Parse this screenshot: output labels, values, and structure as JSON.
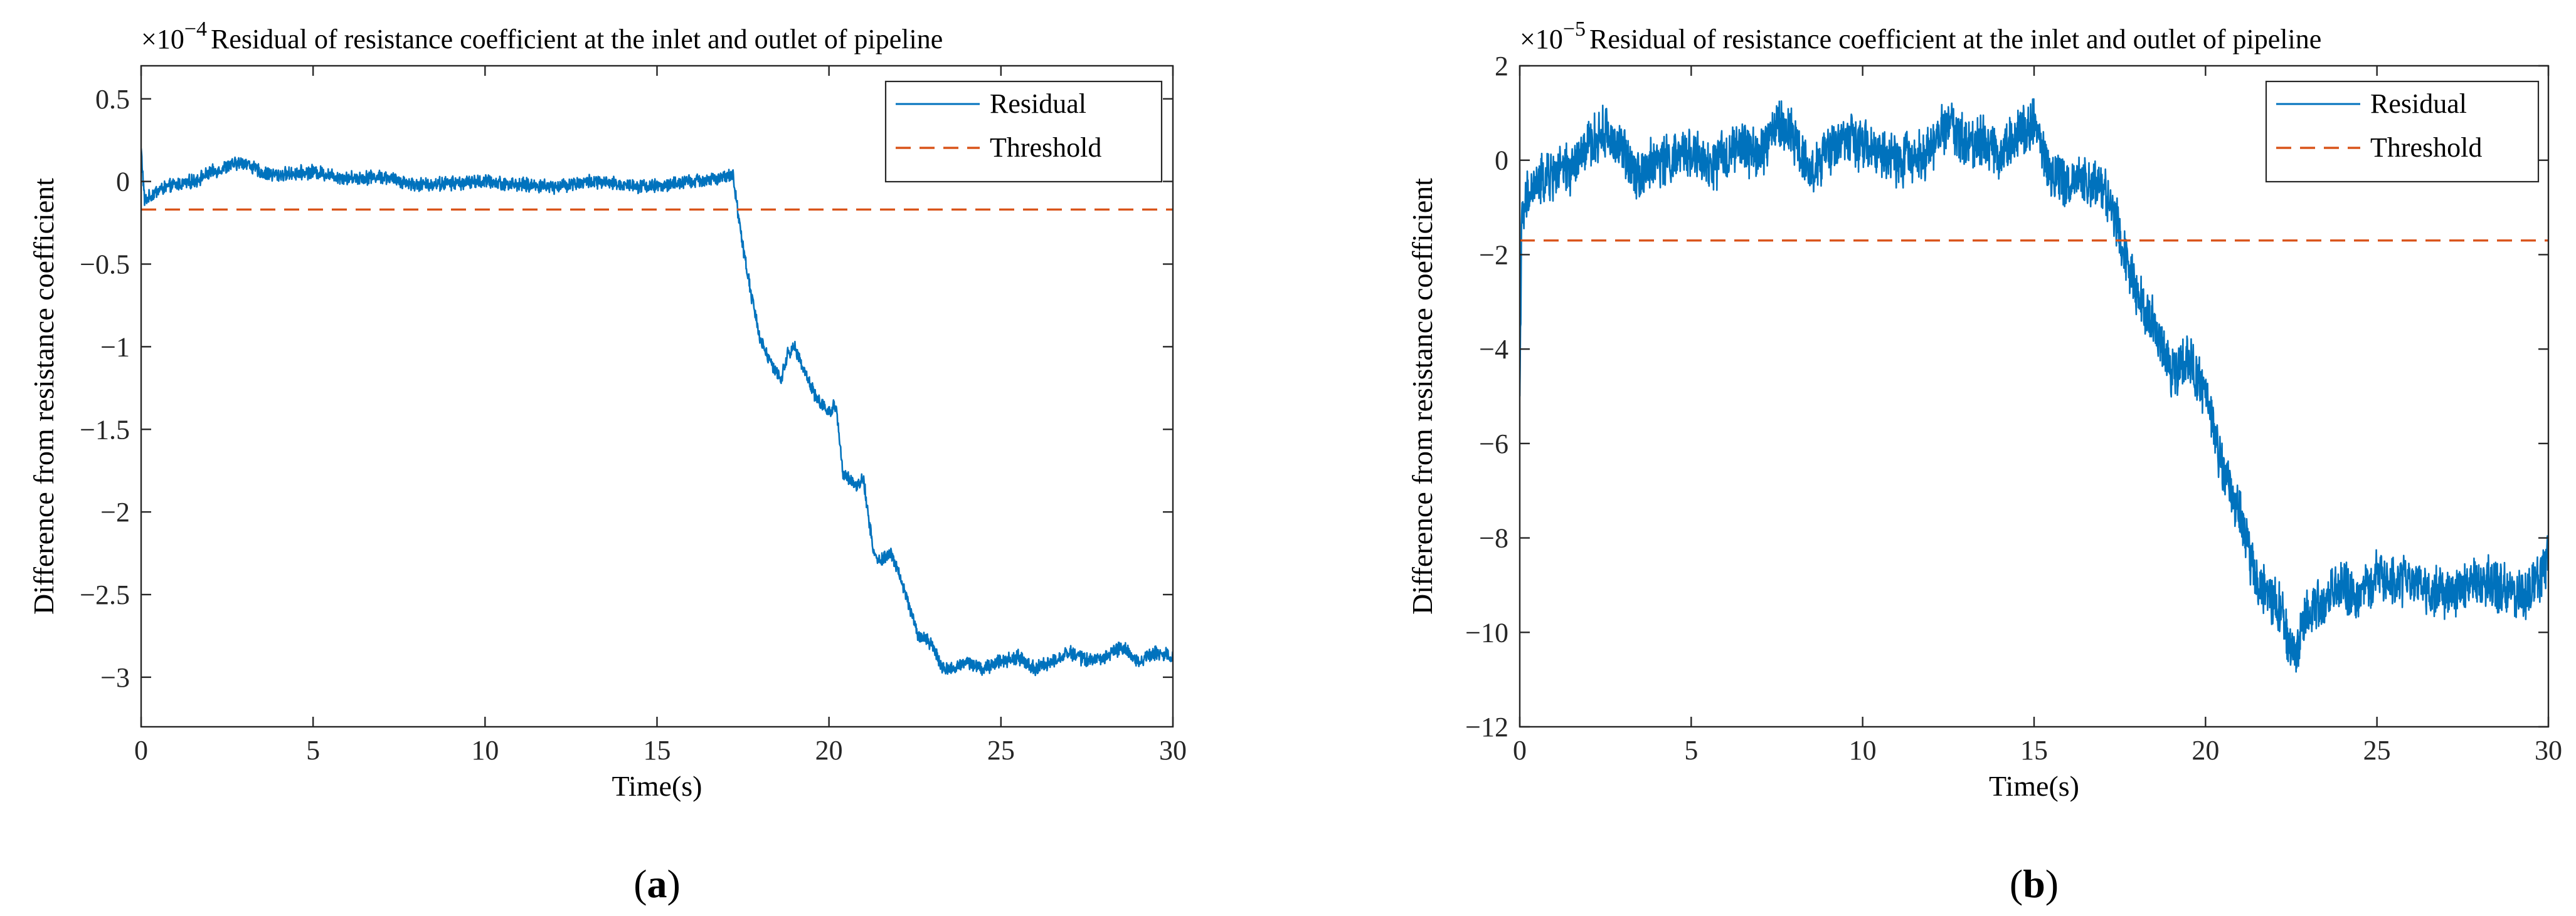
{
  "chart_data": [
    {
      "panel_label": "(a)",
      "panel_letter": "a",
      "type": "line",
      "title": "Residual of resistance coefficient at the inlet and outlet of pipeline",
      "exponent_label": "×10",
      "exponent": "−4",
      "xlabel": "Time(s)",
      "ylabel": "Difference from resistance coefficient",
      "xlim": [
        0,
        30
      ],
      "ylim": [
        -3.3,
        0.7
      ],
      "xticks": [
        0,
        5,
        10,
        15,
        20,
        25,
        30
      ],
      "xtick_labels": [
        "0",
        "5",
        "10",
        "15",
        "20",
        "25",
        "30"
      ],
      "yticks": [
        0.5,
        0,
        -0.5,
        -1,
        -1.5,
        -2,
        -2.5,
        -3
      ],
      "ytick_labels": [
        "0.5",
        "0",
        "−0.5",
        "−1",
        "−1.5",
        "−2",
        "−2.5",
        "−3"
      ],
      "series": [
        {
          "name": "Residual",
          "color": "#0072BD",
          "style": "solid",
          "x": [
            0,
            0.1,
            0.5,
            1,
            1.5,
            2,
            2.5,
            3,
            3.5,
            4,
            5,
            6,
            7,
            8,
            9,
            10,
            11,
            12,
            13,
            14,
            15,
            16,
            17,
            17.2,
            17.5,
            17.8,
            18,
            18.3,
            18.6,
            18.8,
            19,
            19.3,
            19.6,
            19.8,
            20,
            20.2,
            20.4,
            20.6,
            20.8,
            21,
            21.3,
            21.5,
            21.8,
            22,
            22.3,
            22.6,
            23,
            23.3,
            23.6,
            24,
            24.5,
            25,
            25.5,
            26,
            26.5,
            27,
            27.5,
            28,
            28.5,
            29,
            29.5,
            30
          ],
          "y": [
            0.2,
            -0.12,
            -0.05,
            -0.02,
            0.0,
            0.05,
            0.09,
            0.12,
            0.05,
            0.04,
            0.06,
            0.02,
            0.03,
            -0.02,
            -0.01,
            0.0,
            -0.02,
            -0.03,
            0.0,
            -0.02,
            -0.03,
            0.0,
            0.02,
            0.05,
            -0.4,
            -0.75,
            -0.95,
            -1.1,
            -1.2,
            -1.05,
            -1.0,
            -1.15,
            -1.3,
            -1.35,
            -1.4,
            -1.35,
            -1.75,
            -1.8,
            -1.85,
            -1.8,
            -2.25,
            -2.3,
            -2.25,
            -2.35,
            -2.55,
            -2.75,
            -2.8,
            -2.95,
            -2.95,
            -2.9,
            -2.95,
            -2.9,
            -2.88,
            -2.95,
            -2.9,
            -2.85,
            -2.9,
            -2.88,
            -2.82,
            -2.9,
            -2.85,
            -2.87
          ],
          "noise_amplitude": 0.035
        },
        {
          "name": "Threshold",
          "color": "#D95319",
          "style": "dashed",
          "x": [
            0,
            30
          ],
          "y": [
            -0.17,
            -0.17
          ]
        }
      ]
    },
    {
      "panel_label": "(b)",
      "panel_letter": "b",
      "type": "line",
      "title": "Residual of resistance coefficient at the inlet and outlet of pipeline",
      "exponent_label": "×10",
      "exponent": "−5",
      "xlabel": "Time(s)",
      "ylabel": "Difference from resistance coefficient",
      "xlim": [
        0,
        30
      ],
      "ylim": [
        -12,
        2
      ],
      "xticks": [
        0,
        5,
        10,
        15,
        20,
        25,
        30
      ],
      "xtick_labels": [
        "0",
        "5",
        "10",
        "15",
        "20",
        "25",
        "30"
      ],
      "yticks": [
        2,
        0,
        -2,
        -4,
        -6,
        -8,
        -10,
        -12
      ],
      "ytick_labels": [
        "2",
        "0",
        "−2",
        "−4",
        "−6",
        "−8",
        "−10",
        "−12"
      ],
      "series": [
        {
          "name": "Residual",
          "color": "#0072BD",
          "style": "solid",
          "x": [
            0,
            0.05,
            0.2,
            0.5,
            1,
            1.5,
            2,
            2.5,
            3,
            3.5,
            4,
            4.5,
            5,
            5.5,
            6,
            6.5,
            7,
            7.5,
            8,
            8.5,
            9,
            9.5,
            10,
            11,
            12,
            12.5,
            13,
            13.5,
            14,
            14.5,
            15,
            15.5,
            16,
            16.5,
            17,
            17.5,
            18,
            18.5,
            19,
            19.5,
            20,
            20.5,
            21,
            21.5,
            22,
            22.3,
            22.6,
            23,
            23.5,
            24,
            24.5,
            25,
            26,
            27,
            28,
            29,
            29.5,
            30
          ],
          "y": [
            -5.0,
            -1.5,
            -0.8,
            -0.5,
            -0.3,
            -0.2,
            0.3,
            0.6,
            0.2,
            -0.3,
            0.0,
            0.0,
            0.2,
            -0.2,
            0.1,
            0.3,
            0.1,
            0.8,
            0.5,
            -0.3,
            0.2,
            0.5,
            0.3,
            0.0,
            0.2,
            0.9,
            0.3,
            0.5,
            0.1,
            0.6,
            0.8,
            -0.3,
            -0.5,
            -0.4,
            -0.5,
            -1.5,
            -2.8,
            -3.5,
            -4.5,
            -4.2,
            -5.0,
            -6.5,
            -7.5,
            -9.0,
            -9.3,
            -9.8,
            -10.5,
            -9.5,
            -9.4,
            -9.0,
            -9.3,
            -8.8,
            -9.0,
            -9.2,
            -8.9,
            -9.2,
            -9.1,
            -8.5
          ],
          "noise_amplitude": 0.45
        },
        {
          "name": "Threshold",
          "color": "#D95319",
          "style": "dashed",
          "x": [
            0,
            30
          ],
          "y": [
            -1.7,
            -1.7
          ]
        }
      ]
    }
  ]
}
